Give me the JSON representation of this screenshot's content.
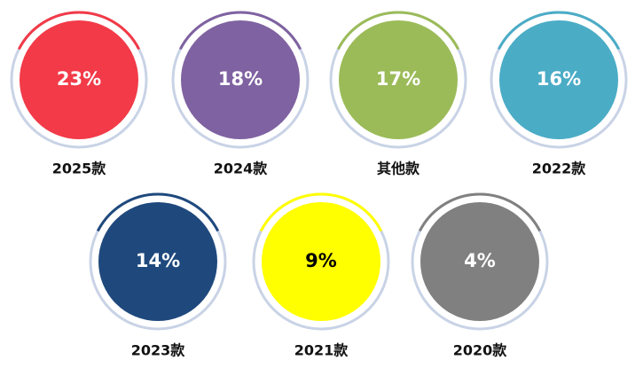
{
  "chart_data": {
    "type": "circles",
    "categories": [
      "2025款",
      "2024款",
      "其他款",
      "2022款",
      "2023款",
      "2021款",
      "2020款"
    ],
    "values": [
      23,
      18,
      17,
      16,
      14,
      9,
      4
    ],
    "value_labels": [
      "23%",
      "18%",
      "17%",
      "16%",
      "14%",
      "9%",
      "4%"
    ],
    "colors": [
      "#f23a48",
      "#7f62a1",
      "#9bbb59",
      "#4bacc6",
      "#1f497d",
      "#ffff00",
      "#808080"
    ],
    "label_colors": [
      "#ffffff",
      "#ffffff",
      "#ffffff",
      "#ffffff",
      "#ffffff",
      "#000000",
      "#ffffff"
    ]
  }
}
